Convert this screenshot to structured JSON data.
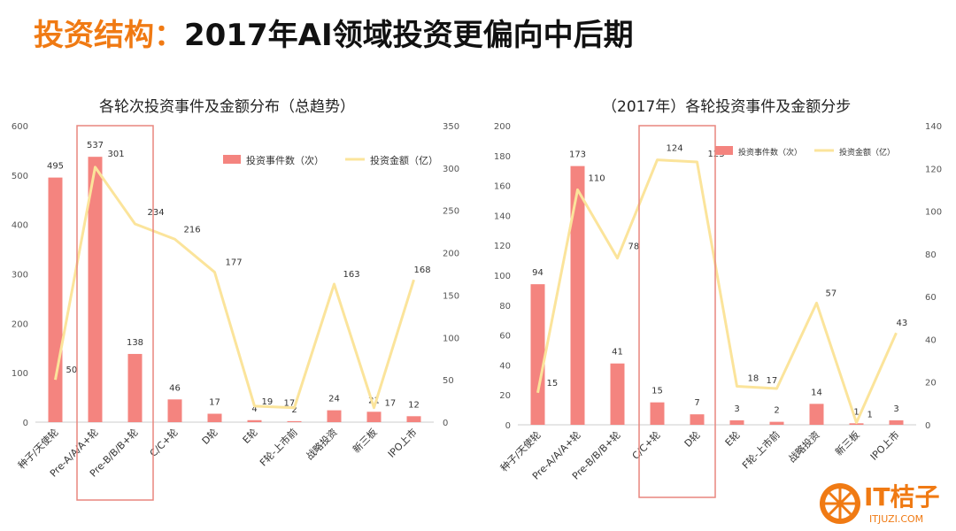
{
  "header": {
    "highlight": "投资结构",
    "separator": "：",
    "rest": "2017年AI领域投资更偏向中后期"
  },
  "brand": {
    "name": "IT桔子",
    "url": "ITJUZI.COM",
    "color": "#f07a13"
  },
  "colors": {
    "bar": "#f4847f",
    "line": "#fbe49b",
    "highlight_box": "#e8867e"
  },
  "chart_data": [
    {
      "type": "bar",
      "title": "各轮次投资事件及金额分布（总趋势）",
      "categories": [
        "种子/天使轮",
        "Pre-A/A/A+轮",
        "Pre-B/B/B+轮",
        "C/C+轮",
        "D轮",
        "E轮",
        "F轮-上市前",
        "战略投资",
        "新三板",
        "IPO上市"
      ],
      "series": [
        {
          "name": "投资事件数（次）",
          "type": "bar",
          "axis": "left",
          "values": [
            495,
            537,
            138,
            46,
            17,
            4,
            2,
            24,
            21,
            12
          ]
        },
        {
          "name": "投资金额（亿）",
          "type": "line",
          "axis": "right",
          "values": [
            50,
            301,
            234,
            216,
            177,
            19,
            17,
            163,
            17,
            168
          ]
        }
      ],
      "ylim_left": [
        0,
        600
      ],
      "yticks_left": [
        0,
        100,
        200,
        300,
        400,
        500,
        600
      ],
      "ylim_right": [
        0,
        350
      ],
      "yticks_right": [
        0,
        50,
        100,
        150,
        200,
        250,
        300,
        350
      ],
      "legend": "top-right",
      "highlight_categories": [
        1,
        2
      ]
    },
    {
      "type": "bar",
      "title": "（2017年）各轮投资事件及金额分步",
      "categories": [
        "种子/天使轮",
        "Pre-A/A/A+轮",
        "Pre-B/B/B+轮",
        "C/C+轮",
        "D轮",
        "E轮",
        "F轮-上市前",
        "战略投资",
        "新三板",
        "IPO上市"
      ],
      "series": [
        {
          "name": "投资事件数（次）",
          "type": "bar",
          "axis": "left",
          "values": [
            94,
            173,
            41,
            15,
            7,
            3,
            2,
            14,
            1,
            3
          ]
        },
        {
          "name": "投资金额（亿）",
          "type": "line",
          "axis": "right",
          "values": [
            15,
            110,
            78,
            124,
            123,
            18,
            17,
            57,
            1,
            43
          ]
        }
      ],
      "ylim_left": [
        0,
        200
      ],
      "yticks_left": [
        0,
        20,
        40,
        60,
        80,
        100,
        120,
        140,
        160,
        180,
        200
      ],
      "ylim_right": [
        0,
        140
      ],
      "yticks_right": [
        0,
        20,
        40,
        60,
        80,
        100,
        120,
        140
      ],
      "legend": "top-right",
      "highlight_categories": [
        3,
        4
      ]
    }
  ]
}
